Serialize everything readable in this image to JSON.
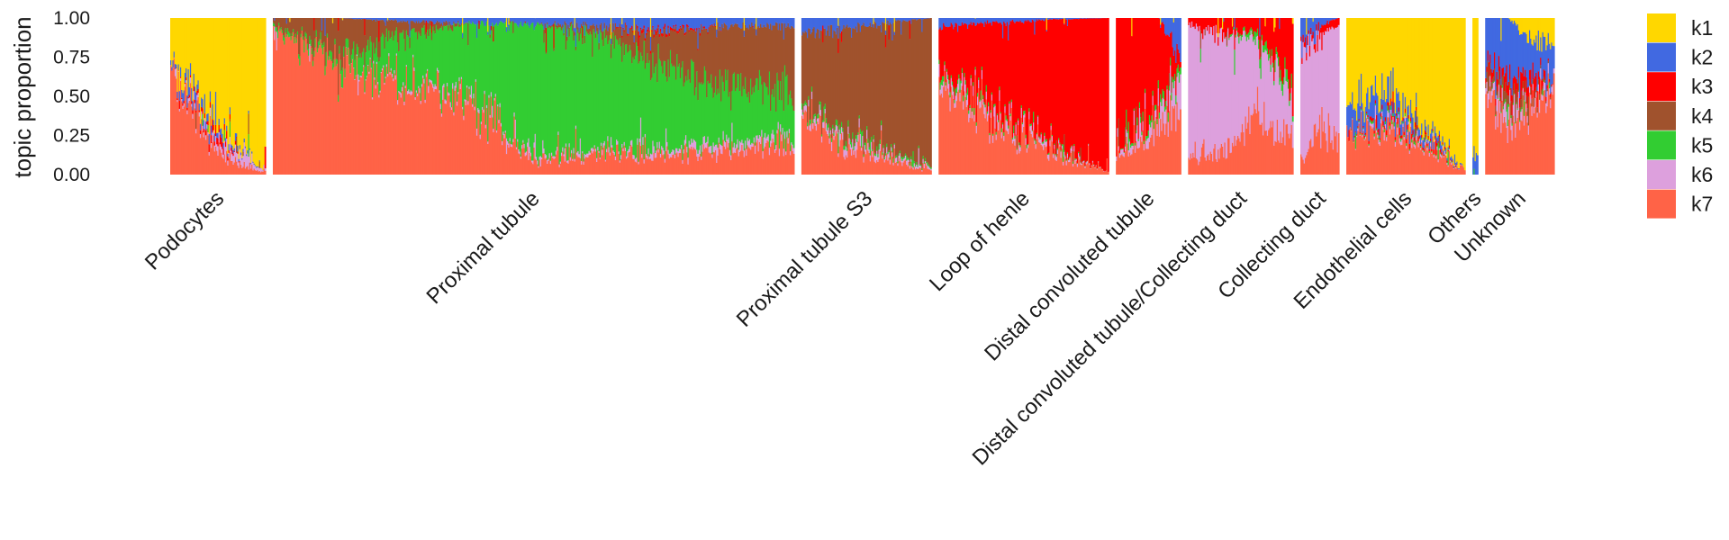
{
  "chart_data": {
    "type": "structure",
    "ylabel": "topic proportion",
    "ylim": [
      0,
      1
    ],
    "yticks": [
      "0.00",
      "0.25",
      "0.50",
      "0.75",
      "1.00"
    ],
    "legend_position": "right",
    "topics": [
      {
        "name": "k1",
        "color": "#FFD700"
      },
      {
        "name": "k2",
        "color": "#4169E1"
      },
      {
        "name": "k3",
        "color": "#FF0000"
      },
      {
        "name": "k4",
        "color": "#A0522D"
      },
      {
        "name": "k5",
        "color": "#32CD32"
      },
      {
        "name": "k6",
        "color": "#DDA0DD"
      },
      {
        "name": "k7",
        "color": "#FF6347"
      }
    ],
    "stack_order": [
      "k7",
      "k6",
      "k5",
      "k4",
      "k3",
      "k2",
      "k1"
    ],
    "groups": [
      {
        "label": "Podocytes",
        "share": 0.069,
        "profile": [
          {
            "k7": 0.72,
            "k6": 0.0,
            "k5": 0.0,
            "k4": 0.0,
            "k3": 0.0,
            "k2": 0.03,
            "k1": 0.25
          },
          {
            "k7": 0.4,
            "k6": 0.03,
            "k5": 0.0,
            "k4": 0.0,
            "k3": 0.02,
            "k2": 0.08,
            "k1": 0.47
          },
          {
            "k7": 0.15,
            "k6": 0.05,
            "k5": 0.0,
            "k4": 0.0,
            "k3": 0.05,
            "k2": 0.04,
            "k1": 0.71
          },
          {
            "k7": 0.06,
            "k6": 0.08,
            "k5": 0.0,
            "k4": 0.0,
            "k3": 0.0,
            "k2": 0.02,
            "k1": 0.84
          },
          {
            "k7": 0.02,
            "k6": 0.01,
            "k5": 0.0,
            "k4": 0.0,
            "k3": 0.0,
            "k2": 0.0,
            "k1": 0.97
          }
        ]
      },
      {
        "label": "Proximal tubule",
        "share": 0.377,
        "profile": [
          {
            "k7": 0.95,
            "k6": 0.0,
            "k5": 0.02,
            "k4": 0.03,
            "k3": 0.0,
            "k2": 0.0,
            "k1": 0.0
          },
          {
            "k7": 0.7,
            "k6": 0.0,
            "k5": 0.05,
            "k4": 0.25,
            "k3": 0.0,
            "k2": 0.0,
            "k1": 0.0
          },
          {
            "k7": 0.6,
            "k6": 0.02,
            "k5": 0.28,
            "k4": 0.08,
            "k3": 0.0,
            "k2": 0.02,
            "k1": 0.0
          },
          {
            "k7": 0.5,
            "k6": 0.02,
            "k5": 0.45,
            "k4": 0.0,
            "k3": 0.0,
            "k2": 0.03,
            "k1": 0.0
          },
          {
            "k7": 0.08,
            "k6": 0.02,
            "k5": 0.86,
            "k4": 0.0,
            "k3": 0.0,
            "k2": 0.04,
            "k1": 0.0
          },
          {
            "k7": 0.15,
            "k6": 0.02,
            "k5": 0.73,
            "k4": 0.05,
            "k3": 0.0,
            "k2": 0.05,
            "k1": 0.0
          },
          {
            "k7": 0.12,
            "k6": 0.03,
            "k5": 0.55,
            "k4": 0.2,
            "k3": 0.02,
            "k2": 0.08,
            "k1": 0.0
          },
          {
            "k7": 0.15,
            "k6": 0.05,
            "k5": 0.35,
            "k4": 0.4,
            "k3": 0.0,
            "k2": 0.05,
            "k1": 0.0
          },
          {
            "k7": 0.18,
            "k6": 0.03,
            "k5": 0.3,
            "k4": 0.44,
            "k3": 0.0,
            "k2": 0.05,
            "k1": 0.0
          }
        ]
      },
      {
        "label": "Proximal tubule S3",
        "share": 0.094,
        "profile": [
          {
            "k7": 0.4,
            "k6": 0.03,
            "k5": 0.02,
            "k4": 0.45,
            "k3": 0.0,
            "k2": 0.1,
            "k1": 0.0
          },
          {
            "k7": 0.2,
            "k6": 0.05,
            "k5": 0.03,
            "k4": 0.65,
            "k3": 0.0,
            "k2": 0.07,
            "k1": 0.0
          },
          {
            "k7": 0.1,
            "k6": 0.03,
            "k5": 0.02,
            "k4": 0.82,
            "k3": 0.0,
            "k2": 0.03,
            "k1": 0.0
          },
          {
            "k7": 0.03,
            "k6": 0.01,
            "k5": 0.01,
            "k4": 0.95,
            "k3": 0.0,
            "k2": 0.0,
            "k1": 0.0
          }
        ]
      },
      {
        "label": "Loop of henle",
        "share": 0.123,
        "profile": [
          {
            "k7": 0.6,
            "k6": 0.05,
            "k5": 0.03,
            "k4": 0.0,
            "k3": 0.27,
            "k2": 0.05,
            "k1": 0.0
          },
          {
            "k7": 0.35,
            "k6": 0.05,
            "k5": 0.02,
            "k4": 0.0,
            "k3": 0.55,
            "k2": 0.03,
            "k1": 0.0
          },
          {
            "k7": 0.15,
            "k6": 0.03,
            "k5": 0.01,
            "k4": 0.0,
            "k3": 0.8,
            "k2": 0.01,
            "k1": 0.0
          },
          {
            "k7": 0.02,
            "k6": 0.0,
            "k5": 0.0,
            "k4": 0.0,
            "k3": 0.98,
            "k2": 0.0,
            "k1": 0.0
          }
        ]
      },
      {
        "label": "Distal convoluted tubule",
        "share": 0.047,
        "profile": [
          {
            "k7": 0.12,
            "k6": 0.03,
            "k5": 0.0,
            "k4": 0.0,
            "k3": 0.85,
            "k2": 0.0,
            "k1": 0.0
          },
          {
            "k7": 0.2,
            "k6": 0.05,
            "k5": 0.02,
            "k4": 0.0,
            "k3": 0.73,
            "k2": 0.0,
            "k1": 0.0
          },
          {
            "k7": 0.35,
            "k6": 0.1,
            "k5": 0.05,
            "k4": 0.0,
            "k3": 0.5,
            "k2": 0.0,
            "k1": 0.0
          },
          {
            "k7": 0.4,
            "k6": 0.2,
            "k5": 0.05,
            "k4": 0.0,
            "k3": 0.05,
            "k2": 0.3,
            "k1": 0.0
          }
        ]
      },
      {
        "label": "Distal convoluted tubule/Collecting duct",
        "share": 0.076,
        "profile": [
          {
            "k7": 0.1,
            "k6": 0.85,
            "k5": 0.0,
            "k4": 0.0,
            "k3": 0.05,
            "k2": 0.0,
            "k1": 0.0
          },
          {
            "k7": 0.15,
            "k6": 0.75,
            "k5": 0.0,
            "k4": 0.0,
            "k3": 0.1,
            "k2": 0.0,
            "k1": 0.0
          },
          {
            "k7": 0.4,
            "k6": 0.45,
            "k5": 0.05,
            "k4": 0.0,
            "k3": 0.1,
            "k2": 0.0,
            "k1": 0.0
          },
          {
            "k7": 0.2,
            "k6": 0.3,
            "k5": 0.05,
            "k4": 0.0,
            "k3": 0.45,
            "k2": 0.0,
            "k1": 0.0
          }
        ]
      },
      {
        "label": "Collecting duct",
        "share": 0.028,
        "profile": [
          {
            "k7": 0.05,
            "k6": 0.75,
            "k5": 0.0,
            "k4": 0.0,
            "k3": 0.05,
            "k2": 0.15,
            "k1": 0.0
          },
          {
            "k7": 0.3,
            "k6": 0.6,
            "k5": 0.0,
            "k4": 0.0,
            "k3": 0.05,
            "k2": 0.05,
            "k1": 0.0
          },
          {
            "k7": 0.2,
            "k6": 0.75,
            "k5": 0.0,
            "k4": 0.0,
            "k3": 0.05,
            "k2": 0.0,
            "k1": 0.0
          }
        ]
      },
      {
        "label": "Endothelial cells",
        "share": 0.086,
        "profile": [
          {
            "k7": 0.25,
            "k6": 0.0,
            "k5": 0.0,
            "k4": 0.0,
            "k3": 0.0,
            "k2": 0.15,
            "k1": 0.6
          },
          {
            "k7": 0.3,
            "k6": 0.03,
            "k5": 0.02,
            "k4": 0.0,
            "k3": 0.03,
            "k2": 0.15,
            "k1": 0.47
          },
          {
            "k7": 0.18,
            "k6": 0.02,
            "k5": 0.01,
            "k4": 0.0,
            "k3": 0.02,
            "k2": 0.05,
            "k1": 0.72
          },
          {
            "k7": 0.02,
            "k6": 0.0,
            "k5": 0.0,
            "k4": 0.0,
            "k3": 0.0,
            "k2": 0.0,
            "k1": 0.98
          }
        ]
      },
      {
        "label": "Others",
        "share": 0.004,
        "profile": [
          {
            "k7": 0.0,
            "k6": 0.0,
            "k5": 0.0,
            "k4": 0.0,
            "k3": 0.0,
            "k2": 0.15,
            "k1": 0.85
          }
        ]
      },
      {
        "label": "Unknown",
        "share": 0.05,
        "profile": [
          {
            "k7": 0.55,
            "k6": 0.05,
            "k5": 0.0,
            "k4": 0.05,
            "k3": 0.05,
            "k2": 0.3,
            "k1": 0.0
          },
          {
            "k7": 0.3,
            "k6": 0.1,
            "k5": 0.02,
            "k4": 0.08,
            "k3": 0.1,
            "k2": 0.4,
            "k1": 0.0
          },
          {
            "k7": 0.45,
            "k6": 0.05,
            "k5": 0.0,
            "k4": 0.05,
            "k3": 0.1,
            "k2": 0.2,
            "k1": 0.15
          },
          {
            "k7": 0.6,
            "k6": 0.05,
            "k5": 0.0,
            "k4": 0.0,
            "k3": 0.0,
            "k2": 0.2,
            "k1": 0.15
          }
        ]
      }
    ]
  }
}
